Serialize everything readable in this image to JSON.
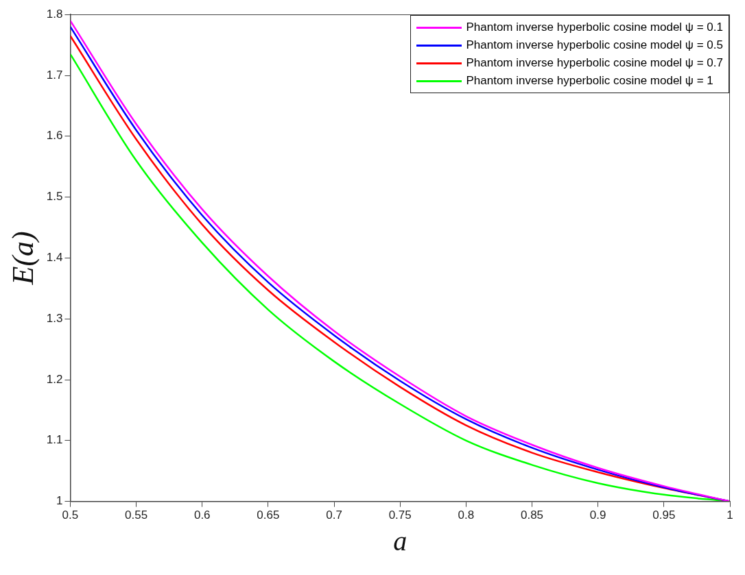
{
  "chart_data": {
    "type": "line",
    "xlabel": "a",
    "ylabel": "E(a)",
    "x": [
      0.5,
      0.55,
      0.6,
      0.65,
      0.7,
      0.75,
      0.8,
      0.85,
      0.9,
      0.95,
      1
    ],
    "series": [
      {
        "name": "Phantom inverse hyperbolic cosine model ψ = 0.1",
        "color": "#ff00ff",
        "values": [
          1.79,
          1.62,
          1.48,
          1.37,
          1.28,
          1.205,
          1.14,
          1.093,
          1.055,
          1.025,
          1
        ]
      },
      {
        "name": "Phantom inverse hyperbolic cosine model ψ = 0.5",
        "color": "#0000ff",
        "values": [
          1.78,
          1.61,
          1.47,
          1.36,
          1.273,
          1.198,
          1.135,
          1.088,
          1.052,
          1.023,
          1
        ]
      },
      {
        "name": "Phantom inverse hyperbolic cosine model ψ = 0.7",
        "color": "#ff0000",
        "values": [
          1.765,
          1.595,
          1.455,
          1.347,
          1.262,
          1.188,
          1.125,
          1.08,
          1.048,
          1.022,
          1
        ]
      },
      {
        "name": "Phantom inverse hyperbolic cosine model ψ = 1",
        "color": "#00ff00",
        "values": [
          1.735,
          1.56,
          1.425,
          1.315,
          1.23,
          1.16,
          1.1,
          1.06,
          1.03,
          1.011,
          1
        ]
      }
    ],
    "xlim": [
      0.5,
      1
    ],
    "xticks": [
      0.5,
      0.55,
      0.6,
      0.65,
      0.7,
      0.75,
      0.8,
      0.85,
      0.9,
      0.95,
      1
    ],
    "ylim": [
      1,
      1.8
    ],
    "yticks": [
      1,
      1.1,
      1.2,
      1.3,
      1.4,
      1.5,
      1.6,
      1.7,
      1.8
    ],
    "grid": false,
    "legend": "top right",
    "marker": "none",
    "line_style": "solid"
  }
}
